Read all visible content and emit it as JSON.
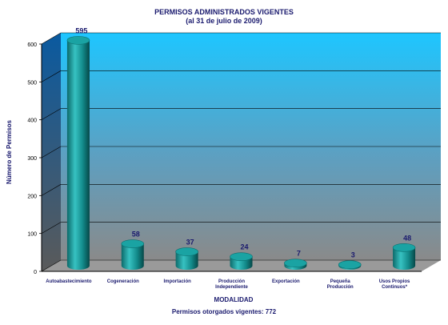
{
  "chart_data": {
    "type": "bar",
    "title": "PERMISOS ADMINISTRADOS VIGENTES",
    "subtitle": "(al 31 de julio de 2009)",
    "xlabel": "MODALIDAD",
    "ylabel": "Número de Permisos",
    "ylim": [
      0,
      600
    ],
    "yticks": [
      0,
      100,
      200,
      300,
      400,
      500,
      600
    ],
    "categories": [
      "Autoabastecimiento",
      "Cogeneración",
      "Importación",
      "Producción Independiente",
      "Exportación",
      "Pequeña Producción",
      "Usos Propios Continuos*"
    ],
    "values": [
      595,
      58,
      37,
      24,
      7,
      3,
      48
    ],
    "grid": true,
    "bar_color": "#1a9c9c",
    "footnote": "Permisos otorgados vigentes: 772"
  }
}
